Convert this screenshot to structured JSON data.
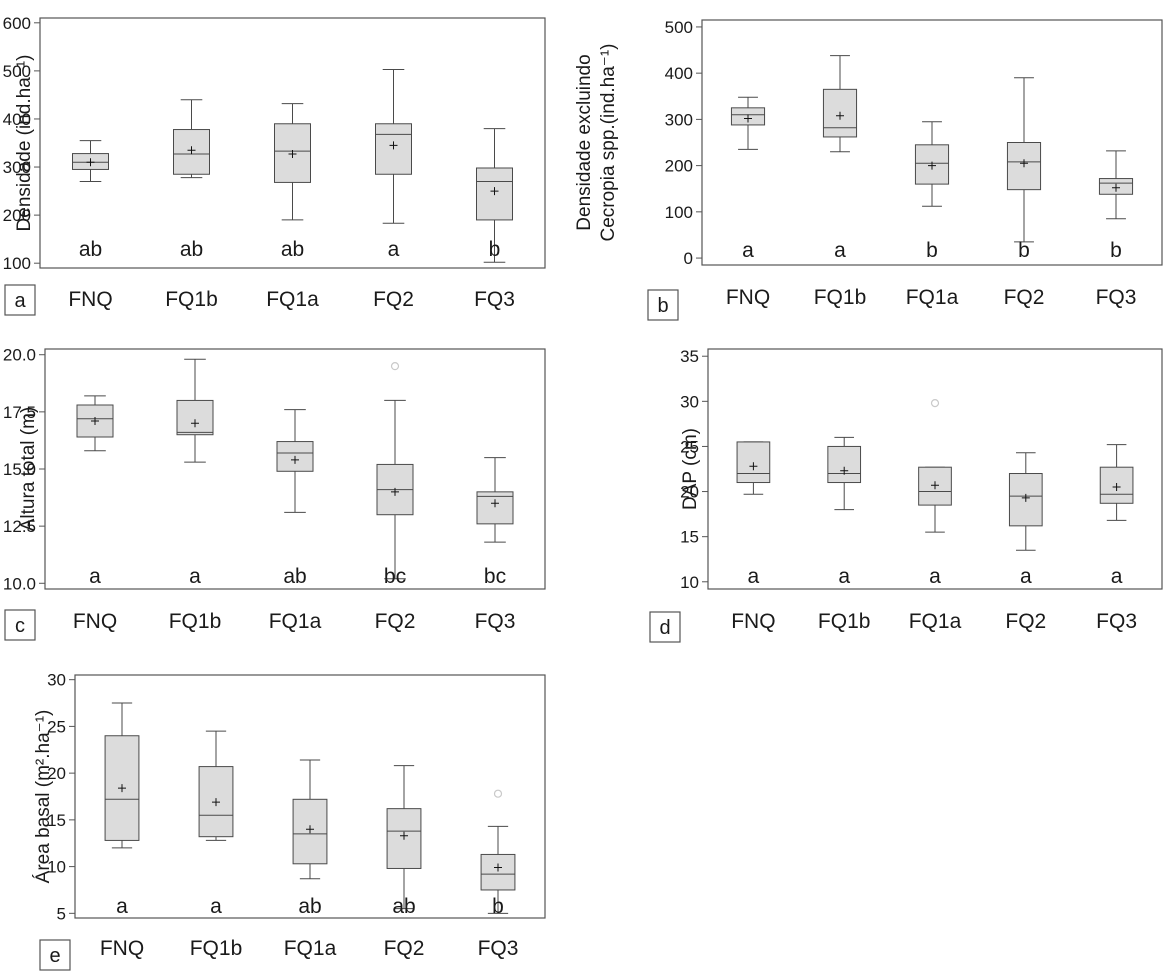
{
  "colors": {
    "box_fill": "#dcdcdc",
    "stroke": "#4a4a4a",
    "outlier": "#c9c9c9",
    "text": "#1a1a1a",
    "frame": "#555555"
  },
  "chart_data": [
    {
      "panel_label": "a",
      "type": "box",
      "ylabel_lines": [
        "Densidade  (ind.ha⁻¹)"
      ],
      "categories": [
        "FNQ",
        "FQ1b",
        "FQ1a",
        "FQ2",
        "FQ3"
      ],
      "ylim": [
        90,
        610
      ],
      "yticks": [
        100,
        200,
        300,
        400,
        500,
        600
      ],
      "ytick_labels": [
        "100",
        "200",
        "300",
        "400",
        "500",
        "600"
      ],
      "boxes": [
        {
          "min": 270,
          "q1": 295,
          "median": 310,
          "q3": 328,
          "max": 355,
          "mean": 310
        },
        {
          "min": 278,
          "q1": 285,
          "median": 327,
          "q3": 378,
          "max": 440,
          "mean": 335
        },
        {
          "min": 190,
          "q1": 268,
          "median": 333,
          "q3": 390,
          "max": 432,
          "mean": 327
        },
        {
          "min": 183,
          "q1": 285,
          "median": 368,
          "q3": 390,
          "max": 503,
          "mean": 345
        },
        {
          "min": 102,
          "q1": 190,
          "median": 270,
          "q3": 298,
          "max": 380,
          "mean": 250
        }
      ],
      "outliers": [
        [],
        [],
        [],
        [],
        []
      ],
      "letters": [
        "ab",
        "ab",
        "ab",
        "a",
        "b"
      ]
    },
    {
      "panel_label": "b",
      "type": "box",
      "ylabel_lines": [
        "Densidade  excluindo",
        "Cecropia spp.(ind.ha⁻¹)"
      ],
      "categories": [
        "FNQ",
        "FQ1b",
        "FQ1a",
        "FQ2",
        "FQ3"
      ],
      "ylim": [
        -15,
        515
      ],
      "yticks": [
        0,
        100,
        200,
        300,
        400,
        500
      ],
      "ytick_labels": [
        "0",
        "100",
        "200",
        "300",
        "400",
        "500"
      ],
      "boxes": [
        {
          "min": 235,
          "q1": 288,
          "median": 310,
          "q3": 325,
          "max": 348,
          "mean": 302
        },
        {
          "min": 230,
          "q1": 262,
          "median": 282,
          "q3": 365,
          "max": 438,
          "mean": 308
        },
        {
          "min": 112,
          "q1": 160,
          "median": 205,
          "q3": 245,
          "max": 295,
          "mean": 200
        },
        {
          "min": 35,
          "q1": 148,
          "median": 208,
          "q3": 250,
          "max": 390,
          "mean": 205
        },
        {
          "min": 85,
          "q1": 138,
          "median": 162,
          "q3": 172,
          "max": 232,
          "mean": 152
        }
      ],
      "outliers": [
        [],
        [],
        [],
        [],
        []
      ],
      "letters": [
        "a",
        "a",
        "b",
        "b",
        "b"
      ]
    },
    {
      "panel_label": "c",
      "type": "box",
      "ylabel_lines": [
        "Altura total (m)"
      ],
      "categories": [
        "FNQ",
        "FQ1b",
        "FQ1a",
        "FQ2",
        "FQ3"
      ],
      "ylim": [
        9.75,
        20.25
      ],
      "yticks": [
        10.0,
        12.5,
        15.0,
        17.5,
        20.0
      ],
      "ytick_labels": [
        "10.0",
        "12.5",
        "15.0",
        "17.5",
        "20.0"
      ],
      "boxes": [
        {
          "min": 15.8,
          "q1": 16.4,
          "median": 17.2,
          "q3": 17.8,
          "max": 18.2,
          "mean": 17.1
        },
        {
          "min": 15.3,
          "q1": 16.5,
          "median": 16.6,
          "q3": 18.0,
          "max": 19.8,
          "mean": 17.0
        },
        {
          "min": 13.1,
          "q1": 14.9,
          "median": 15.7,
          "q3": 16.2,
          "max": 17.6,
          "mean": 15.4
        },
        {
          "min": 10.2,
          "q1": 13.0,
          "median": 14.1,
          "q3": 15.2,
          "max": 18.0,
          "mean": 14.0
        },
        {
          "min": 11.8,
          "q1": 12.6,
          "median": 13.8,
          "q3": 14.0,
          "max": 15.5,
          "mean": 13.5
        }
      ],
      "outliers": [
        [],
        [],
        [],
        [
          19.5
        ],
        []
      ],
      "letters": [
        "a",
        "a",
        "ab",
        "bc",
        "bc"
      ]
    },
    {
      "panel_label": "d",
      "type": "box",
      "ylabel_lines": [
        "DAP (cm)"
      ],
      "categories": [
        "FNQ",
        "FQ1b",
        "FQ1a",
        "FQ2",
        "FQ3"
      ],
      "ylim": [
        9.2,
        35.8
      ],
      "yticks": [
        10,
        15,
        20,
        25,
        30,
        35
      ],
      "ytick_labels": [
        "10",
        "15",
        "20",
        "25",
        "30",
        "35"
      ],
      "boxes": [
        {
          "min": 19.7,
          "q1": 21.0,
          "median": 22.0,
          "q3": 25.5,
          "max": 25.5,
          "mean": 22.8
        },
        {
          "min": 18.0,
          "q1": 21.0,
          "median": 22.0,
          "q3": 25.0,
          "max": 26.0,
          "mean": 22.3
        },
        {
          "min": 15.5,
          "q1": 18.5,
          "median": 20.0,
          "q3": 22.7,
          "max": 22.7,
          "mean": 20.7
        },
        {
          "min": 13.5,
          "q1": 16.2,
          "median": 19.5,
          "q3": 22.0,
          "max": 24.3,
          "mean": 19.3
        },
        {
          "min": 16.8,
          "q1": 18.7,
          "median": 19.7,
          "q3": 22.7,
          "max": 25.2,
          "mean": 20.5
        }
      ],
      "outliers": [
        [],
        [],
        [
          29.8
        ],
        [],
        []
      ],
      "letters": [
        "a",
        "a",
        "a",
        "a",
        "a"
      ]
    },
    {
      "panel_label": "e",
      "type": "box",
      "ylabel_lines": [
        "Área basal (m².ha⁻¹)"
      ],
      "categories": [
        "FNQ",
        "FQ1b",
        "FQ1a",
        "FQ2",
        "FQ3"
      ],
      "ylim": [
        4.5,
        30.5
      ],
      "yticks": [
        5,
        10,
        15,
        20,
        25,
        30
      ],
      "ytick_labels": [
        "5",
        "10",
        "15",
        "20",
        "25",
        "30"
      ],
      "boxes": [
        {
          "min": 12.0,
          "q1": 12.8,
          "median": 17.2,
          "q3": 24.0,
          "max": 27.5,
          "mean": 18.4
        },
        {
          "min": 12.8,
          "q1": 13.2,
          "median": 15.5,
          "q3": 20.7,
          "max": 24.5,
          "mean": 16.9
        },
        {
          "min": 8.7,
          "q1": 10.3,
          "median": 13.5,
          "q3": 17.2,
          "max": 21.4,
          "mean": 14.0
        },
        {
          "min": 5.5,
          "q1": 9.8,
          "median": 13.8,
          "q3": 16.2,
          "max": 20.8,
          "mean": 13.3
        },
        {
          "min": 5.0,
          "q1": 7.5,
          "median": 9.2,
          "q3": 11.3,
          "max": 14.3,
          "mean": 9.9
        }
      ],
      "outliers": [
        [],
        [],
        [],
        [],
        [
          17.8
        ]
      ],
      "letters": [
        "a",
        "a",
        "ab",
        "ab",
        "b"
      ]
    }
  ]
}
